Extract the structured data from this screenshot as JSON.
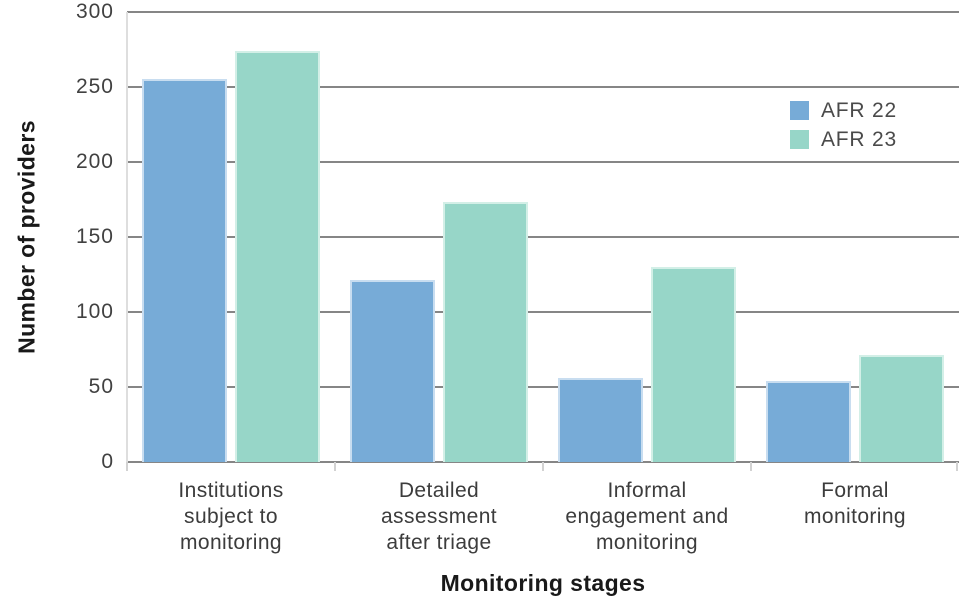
{
  "chart_data": {
    "type": "bar",
    "title": "",
    "xlabel": "Monitoring stages",
    "ylabel": "Number of providers",
    "categories": [
      "Institutions subject to monitoring",
      "Detailed assessment after triage",
      "Informal engagement and monitoring",
      "Formal monitoring"
    ],
    "category_lines": [
      [
        "Institutions",
        "subject to",
        "monitoring"
      ],
      [
        "Detailed",
        "assessment",
        "after triage"
      ],
      [
        "Informal",
        "engagement and",
        "monitoring"
      ],
      [
        "Formal",
        "monitoring"
      ]
    ],
    "series": [
      {
        "name": "AFR 22",
        "color": "#77abd7",
        "edge_color": "#c8ddf0",
        "values": [
          255,
          121,
          56,
          54
        ]
      },
      {
        "name": "AFR 23",
        "color": "#97d6c8",
        "edge_color": "#d3efe7",
        "values": [
          274,
          173,
          130,
          71
        ]
      }
    ],
    "ylim": [
      0,
      300
    ],
    "yticks": [
      0,
      50,
      100,
      150,
      200,
      250,
      300
    ],
    "grid": "horizontal",
    "legend_position": "upper-right",
    "background_color": "#ffffff",
    "gridline_color": "#868686",
    "axis_line_color": "#dedede",
    "tick_text_color": "#414141",
    "category_text_color": "#3c3c3c",
    "axis_title_color": "#191919",
    "legend_text_color": "#4a4a4a"
  }
}
